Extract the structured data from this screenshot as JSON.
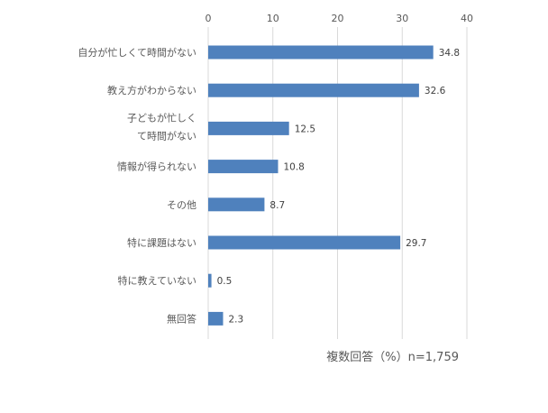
{
  "chart_data": {
    "type": "bar",
    "orientation": "horizontal",
    "categories": [
      [
        "自分が忙しくて時間がない"
      ],
      [
        "教え方がわからない"
      ],
      [
        "子どもが忙しく",
        "て時間がない"
      ],
      [
        "情報が得られない"
      ],
      [
        "その他"
      ],
      [
        "特に課題はない"
      ],
      [
        "特に教えていない"
      ],
      [
        "無回答"
      ]
    ],
    "values": [
      34.8,
      32.6,
      12.5,
      10.8,
      8.7,
      29.7,
      0.5,
      2.3
    ],
    "value_labels": [
      "34.8",
      "32.6",
      "12.5",
      "10.8",
      "8.7",
      "29.7",
      "0.5",
      "2.3"
    ],
    "xlim": [
      0,
      40
    ],
    "x_ticks": [
      "0",
      "10",
      "20",
      "30",
      "40"
    ],
    "x_tick_values": [
      0,
      10,
      20,
      30,
      40
    ],
    "axis_position": "top",
    "grid": true,
    "bar_color": "#4f81bd",
    "grid_color": "#d9d9d9",
    "note": "複数回答（%）n=1,759"
  }
}
